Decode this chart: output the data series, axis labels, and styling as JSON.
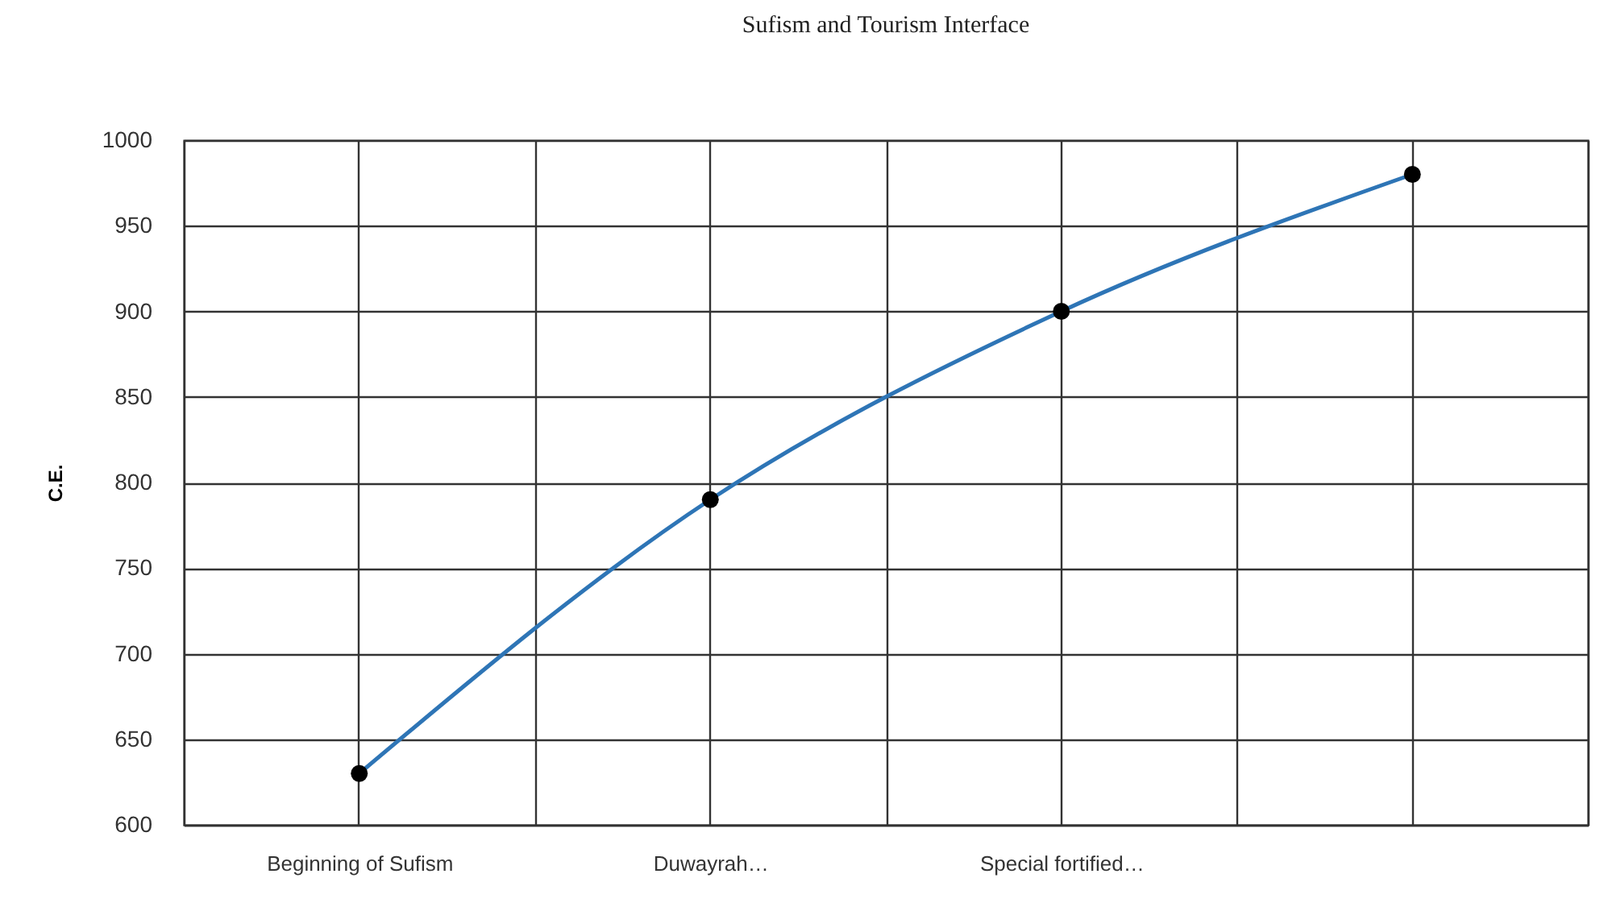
{
  "chart_data": {
    "type": "line",
    "title": "Sufism and Tourism Interface",
    "ylabel": "C.E.",
    "categories": [
      "Beginning of Sufism",
      "Duwayrah…",
      "Special fortified…",
      null
    ],
    "series": [
      {
        "color": "#2e75b6",
        "values": [
          630,
          790,
          900,
          980
        ]
      }
    ],
    "ylim": [
      600,
      1000
    ],
    "yticks": [
      600,
      650,
      700,
      750,
      800,
      850,
      900,
      950,
      1000
    ],
    "grid": true,
    "marker": "circle",
    "legend": false
  }
}
